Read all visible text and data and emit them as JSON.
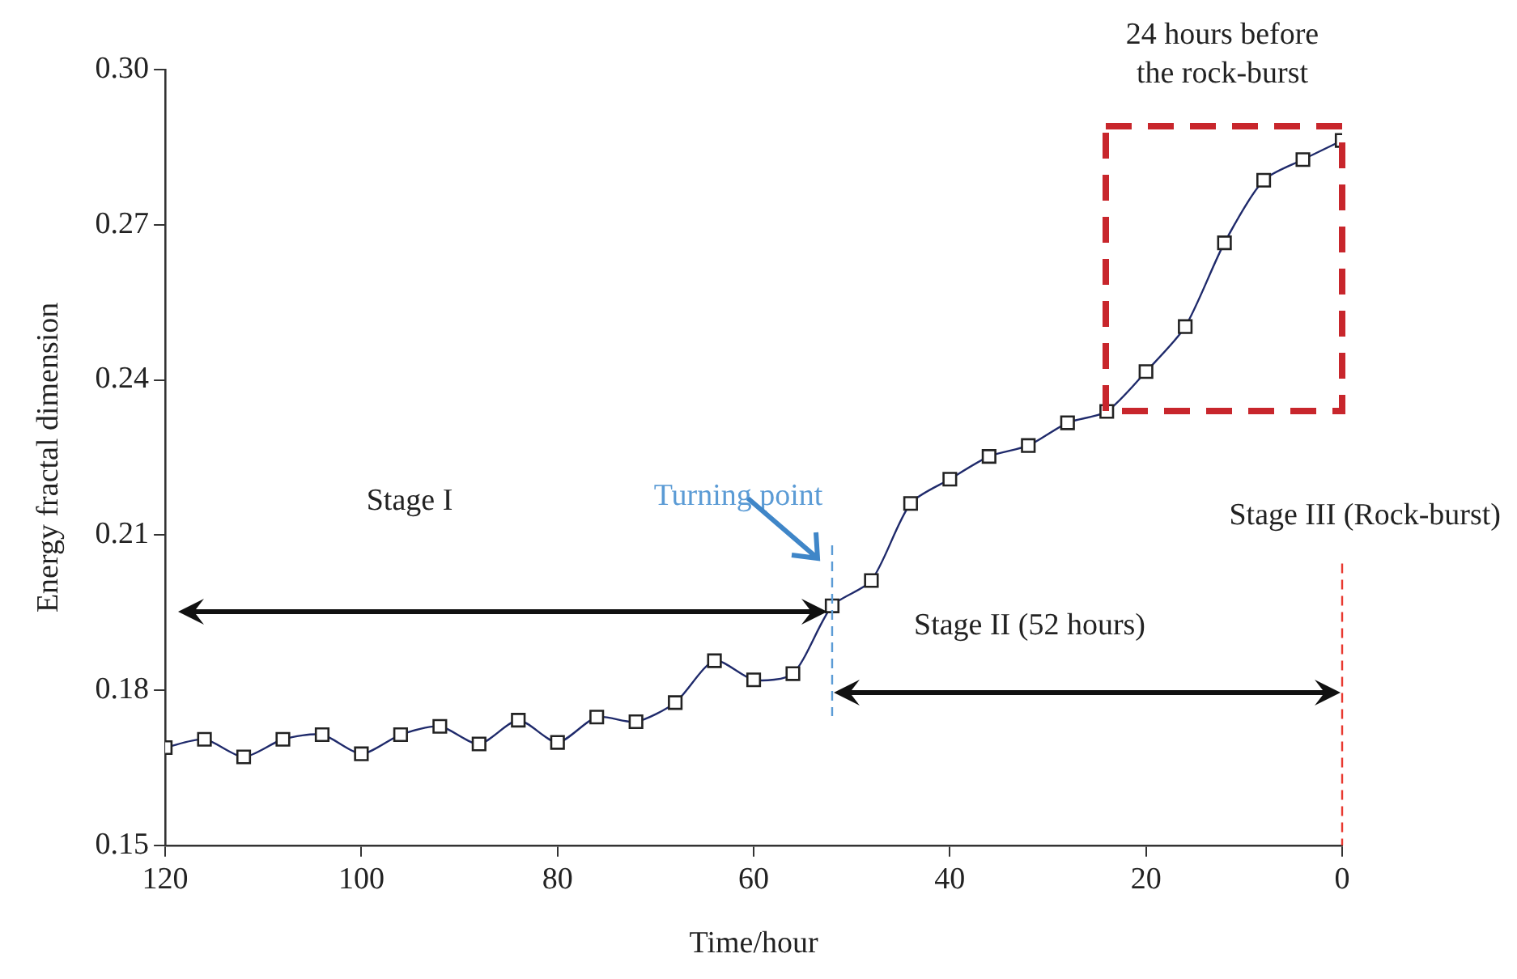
{
  "chart_data": {
    "type": "line",
    "xlabel": "Time/hour",
    "ylabel": "Energy fractal dimension",
    "x": [
      120,
      116,
      112,
      108,
      104,
      100,
      96,
      92,
      88,
      84,
      80,
      76,
      72,
      68,
      64,
      60,
      56,
      52,
      48,
      44,
      40,
      36,
      32,
      28,
      24,
      20,
      16,
      12,
      8,
      4,
      0
    ],
    "series": [
      {
        "color": "#1f2a6b",
        "values": [
          0.1689,
          0.1705,
          0.1671,
          0.1705,
          0.1714,
          0.1677,
          0.1714,
          0.173,
          0.1696,
          0.1742,
          0.1699,
          0.1748,
          0.1739,
          0.1776,
          0.1857,
          0.182,
          0.1832,
          0.1963,
          0.2012,
          0.2161,
          0.2208,
          0.2252,
          0.2273,
          0.2317,
          0.2339,
          0.2416,
          0.2503,
          0.2665,
          0.2786,
          0.2826,
          0.2863
        ]
      }
    ],
    "xlim": [
      120,
      0
    ],
    "xticks": [
      120,
      100,
      80,
      60,
      40,
      20,
      0
    ],
    "ylim": [
      0.15,
      0.3
    ],
    "yticks": [
      0.15,
      0.18,
      0.21,
      0.24,
      0.27,
      {
        "value": 0.3,
        "label": "0.30"
      }
    ],
    "marker": "square",
    "line_style": "solid",
    "grid": false,
    "legend": false,
    "ref_lines": [
      {
        "axis": "x",
        "value": 52,
        "label": "Turning point",
        "color": "#5b9bd5",
        "line_style": "dashed"
      },
      {
        "axis": "x",
        "value": 0,
        "color": "#e8382f",
        "line_style": "dashed"
      }
    ],
    "annotations": [
      "Stage I",
      "Stage II (52 hours)",
      "Stage III (Rock-burst)",
      "24 hours before the rock-burst"
    ]
  }
}
